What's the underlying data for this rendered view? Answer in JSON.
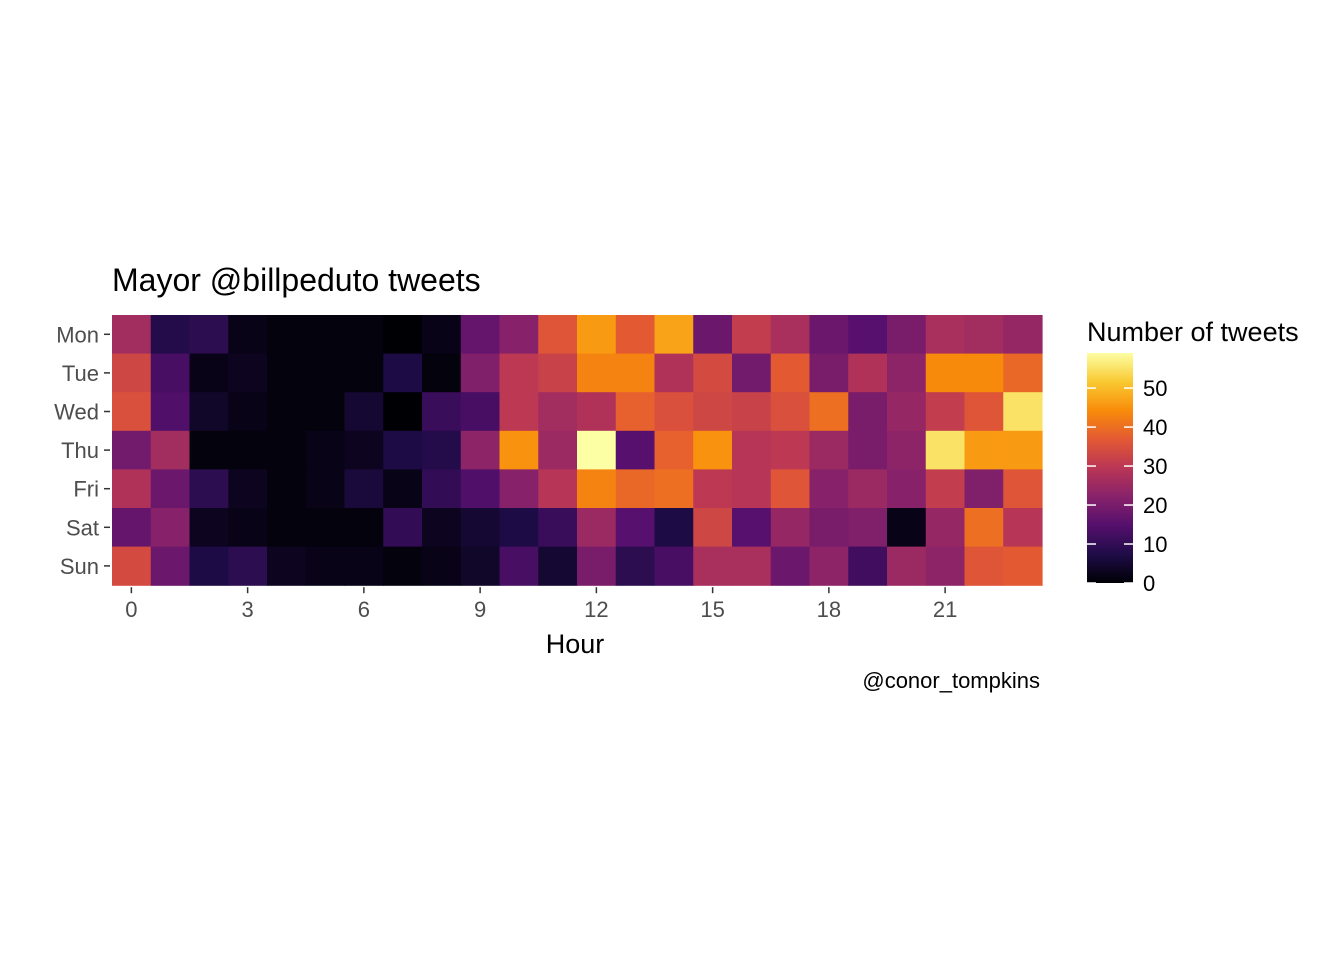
{
  "chart_data": {
    "type": "heatmap",
    "title": "Mayor @billpeduto tweets",
    "xlabel": "Hour",
    "ylabel": "",
    "caption": "@conor_tompkins",
    "x": [
      0,
      1,
      2,
      3,
      4,
      5,
      6,
      7,
      8,
      9,
      10,
      11,
      12,
      13,
      14,
      15,
      16,
      17,
      18,
      19,
      20,
      21,
      22,
      23
    ],
    "x_ticks": [
      0,
      3,
      6,
      9,
      12,
      15,
      18,
      21
    ],
    "y": [
      "Mon",
      "Tue",
      "Wed",
      "Thu",
      "Fri",
      "Sat",
      "Sun"
    ],
    "values": [
      [
        26,
        8,
        9,
        2,
        1,
        1,
        1,
        0,
        2,
        17,
        22,
        36,
        46,
        37,
        47,
        18,
        31,
        27,
        18,
        15,
        20,
        27,
        26,
        24
      ],
      [
        33,
        13,
        2,
        3,
        1,
        1,
        1,
        7,
        1,
        21,
        30,
        32,
        43,
        43,
        28,
        34,
        19,
        37,
        20,
        28,
        23,
        44,
        44,
        39
      ],
      [
        35,
        14,
        4,
        2,
        1,
        1,
        5,
        0,
        11,
        13,
        30,
        26,
        28,
        38,
        35,
        33,
        32,
        35,
        40,
        20,
        24,
        31,
        36,
        55
      ],
      [
        19,
        26,
        1,
        1,
        1,
        2,
        3,
        7,
        8,
        23,
        45,
        25,
        59,
        15,
        38,
        45,
        29,
        30,
        25,
        20,
        23,
        55,
        46,
        46
      ],
      [
        28,
        18,
        9,
        3,
        1,
        2,
        6,
        2,
        10,
        14,
        22,
        29,
        43,
        39,
        40,
        30,
        29,
        36,
        22,
        25,
        22,
        31,
        21,
        36
      ],
      [
        17,
        22,
        3,
        2,
        1,
        1,
        1,
        10,
        3,
        5,
        7,
        11,
        25,
        15,
        7,
        33,
        15,
        24,
        20,
        21,
        2,
        24,
        40,
        29
      ],
      [
        34,
        18,
        7,
        9,
        3,
        2,
        2,
        1,
        2,
        4,
        13,
        5,
        20,
        9,
        13,
        27,
        27,
        18,
        23,
        12,
        25,
        23,
        36,
        37
      ]
    ],
    "zlim": [
      0,
      59
    ],
    "colorscale": "inferno",
    "legend": {
      "title": "Number of tweets",
      "ticks": [
        0,
        10,
        20,
        30,
        40,
        50
      ],
      "position": "right"
    },
    "grid": false
  }
}
